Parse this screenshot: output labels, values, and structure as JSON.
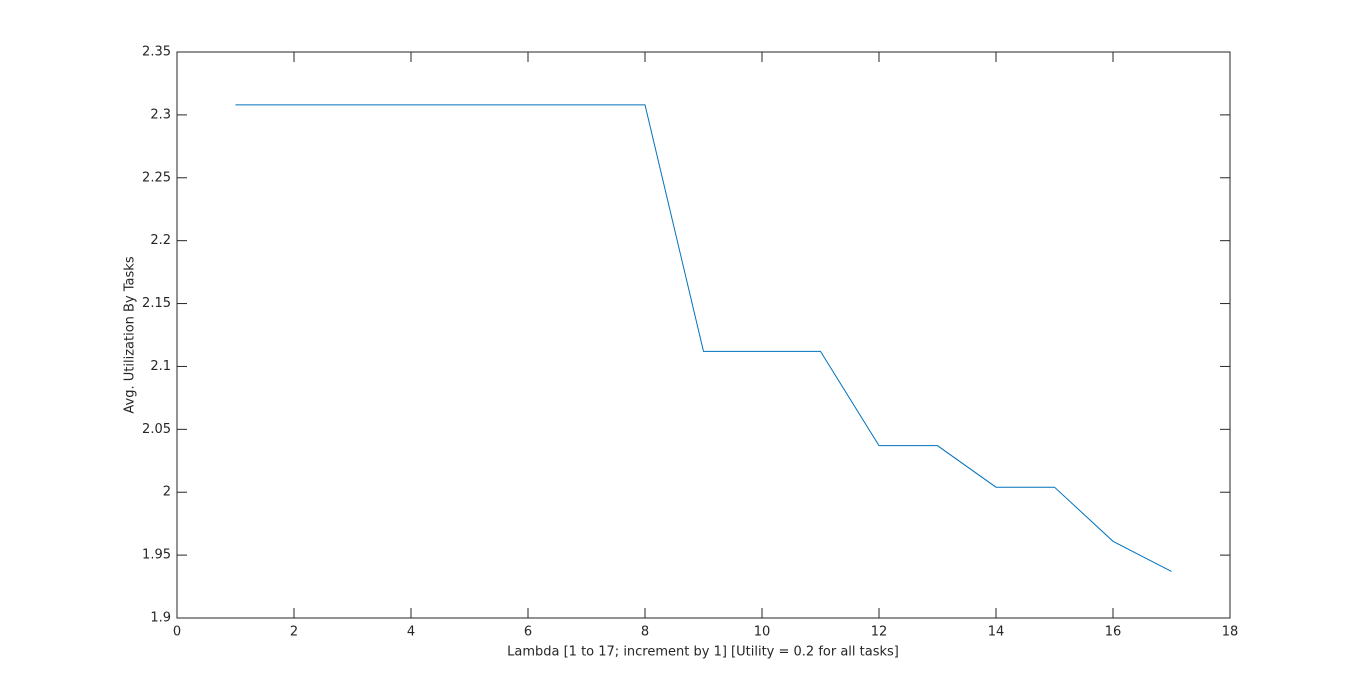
{
  "chart_data": {
    "type": "line",
    "x_label": "Lambda [1 to 17; increment by 1] [Utility = 0.2 for all tasks]",
    "y_label": "Avg. Utilization By Tasks",
    "x": [
      1,
      2,
      3,
      4,
      5,
      6,
      7,
      8,
      9,
      10,
      11,
      12,
      13,
      14,
      15,
      16,
      17
    ],
    "series": [
      {
        "color": "#0072bd",
        "values": [
          2.308,
          2.308,
          2.308,
          2.308,
          2.308,
          2.308,
          2.308,
          2.308,
          2.112,
          2.112,
          2.112,
          2.037,
          2.037,
          2.004,
          2.004,
          1.961,
          1.937
        ]
      }
    ],
    "xlim": [
      0,
      18
    ],
    "xticks": [
      0,
      2,
      4,
      6,
      8,
      10,
      12,
      14,
      16,
      18
    ],
    "ylim": [
      1.9,
      2.35
    ],
    "yticks": [
      1.9,
      1.95,
      2,
      2.05,
      2.1,
      2.15,
      2.2,
      2.25,
      2.3,
      2.35
    ],
    "grid": false
  }
}
